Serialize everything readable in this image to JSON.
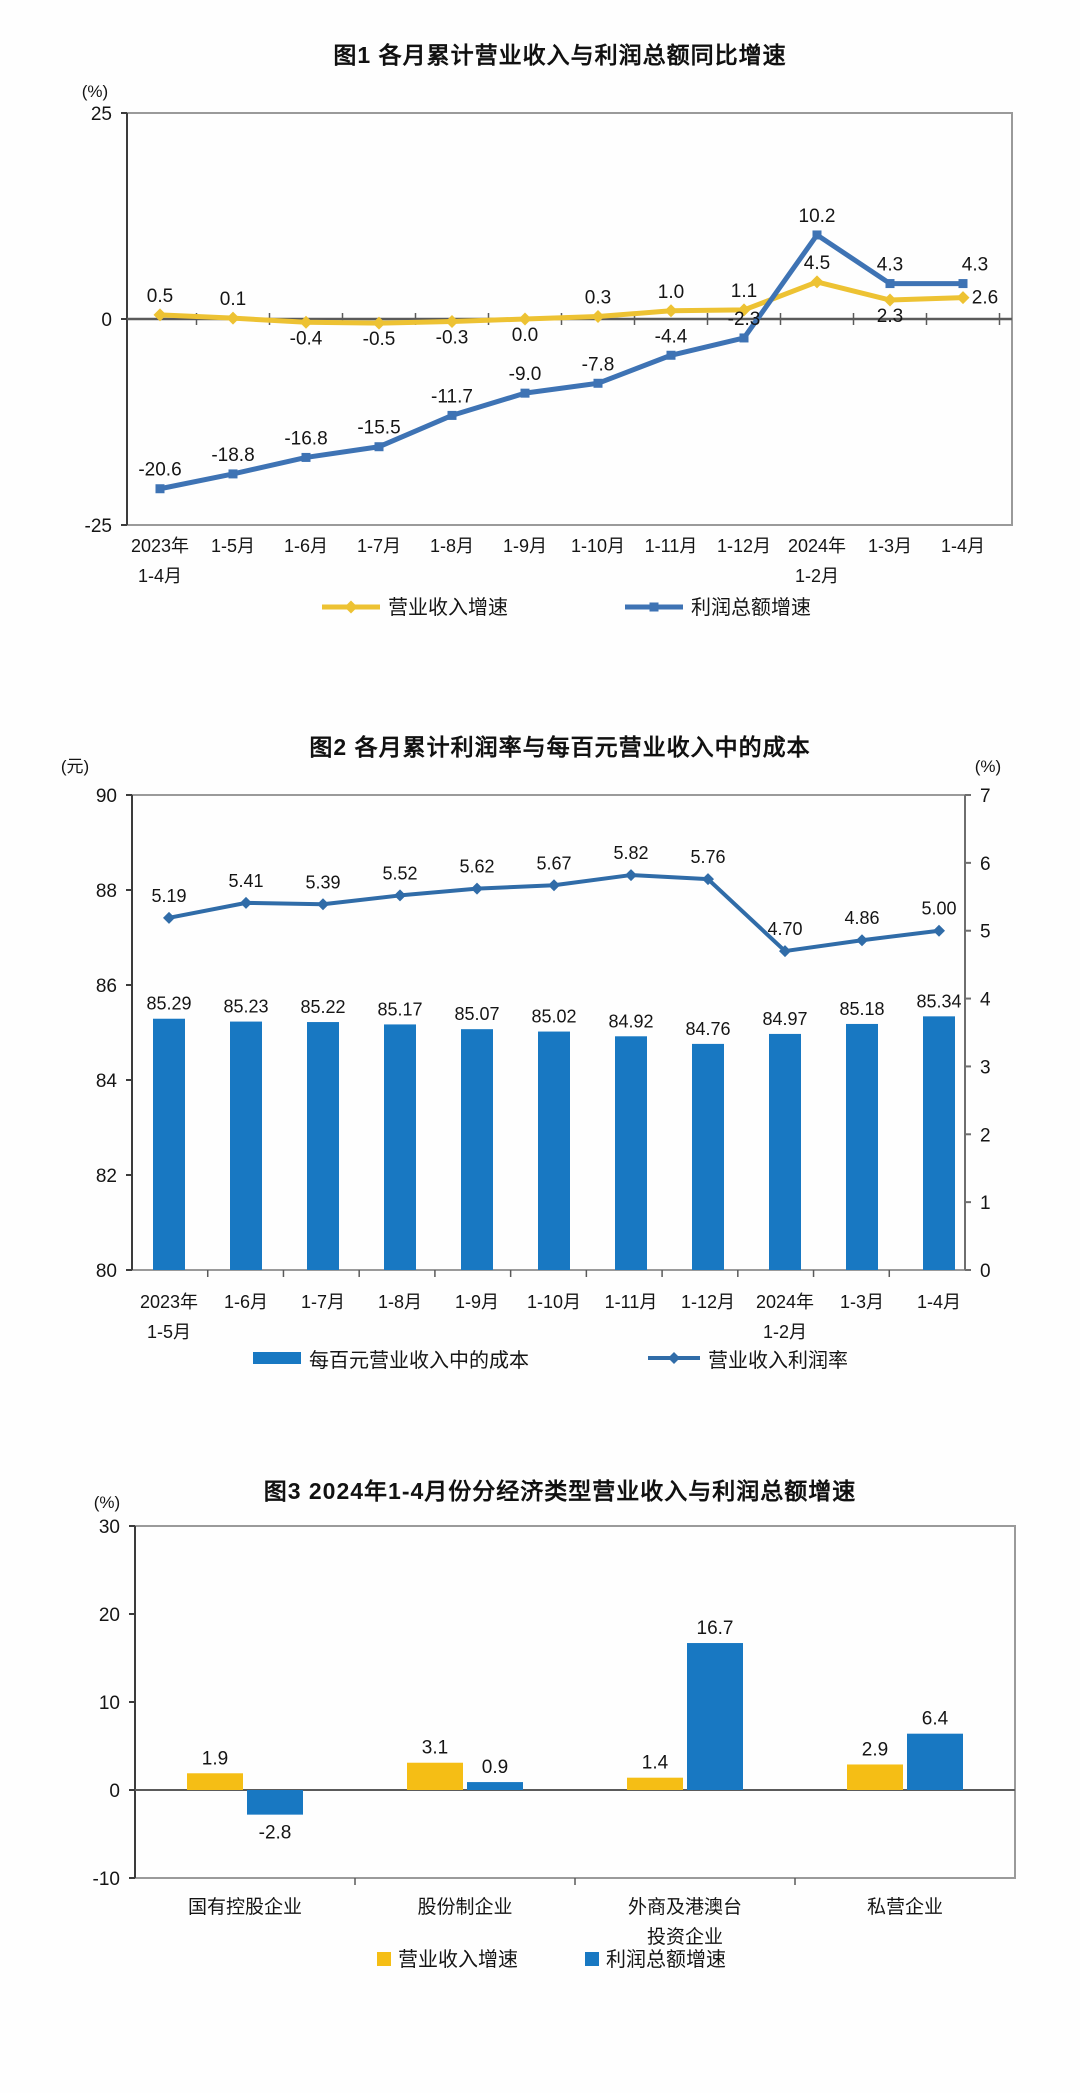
{
  "page": {
    "background": "#fefefe"
  },
  "chart_data": [
    {
      "type": "line",
      "title": "图1  各月累计营业收入与利润总额同比增速",
      "unit_left": "(%)",
      "ylim": [
        -25,
        25
      ],
      "yticks": [
        25,
        0,
        -25
      ],
      "grid": false,
      "legend_position": "bottom",
      "categories": [
        [
          "2023年",
          "1-4月"
        ],
        [
          "1-5月"
        ],
        [
          "1-6月"
        ],
        [
          "1-7月"
        ],
        [
          "1-8月"
        ],
        [
          "1-9月"
        ],
        [
          "1-10月"
        ],
        [
          "1-11月"
        ],
        [
          "1-12月"
        ],
        [
          "2024年",
          "1-2月"
        ],
        [
          "1-3月"
        ],
        [
          "1-4月"
        ]
      ],
      "series": [
        {
          "name": "营业收入增速",
          "color": "#EDC233",
          "marker": "diamond",
          "values": [
            0.5,
            0.1,
            -0.4,
            -0.5,
            -0.3,
            0.0,
            0.3,
            1.0,
            1.1,
            4.5,
            2.3,
            2.6
          ],
          "labels": [
            "0.5",
            "0.1",
            "-0.4",
            "-0.5",
            "-0.3",
            "0.0",
            "0.3",
            "1.0",
            "1.1",
            "4.5",
            "2.3",
            "2.6"
          ],
          "label_pos": [
            "above",
            "above",
            "below",
            "below",
            "below",
            "below",
            "above",
            "above",
            "above",
            "above",
            "below",
            "right"
          ]
        },
        {
          "name": "利润总额增速",
          "color": "#3E73B4",
          "marker": "square",
          "values": [
            -20.6,
            -18.8,
            -16.8,
            -15.5,
            -11.7,
            -9.0,
            -7.8,
            -4.4,
            -2.3,
            10.2,
            4.3,
            4.3
          ],
          "labels": [
            "-20.6",
            "-18.8",
            "-16.8",
            "-15.5",
            "-11.7",
            "-9.0",
            "-7.8",
            "-4.4",
            "-2.3",
            "10.2",
            "4.3",
            "4.3"
          ],
          "label_pos": [
            "above",
            "above",
            "above",
            "above",
            "above",
            "above",
            "above",
            "above",
            "above",
            "above",
            "above",
            "above"
          ]
        }
      ]
    },
    {
      "type": "bar-line",
      "title": "图2  各月累计利润率与每百元营业收入中的成本",
      "unit_left": "(元)",
      "unit_right": "(%)",
      "ylim_left": [
        80,
        90
      ],
      "yticks_left": [
        90,
        88,
        86,
        84,
        82,
        80
      ],
      "ylim_right": [
        0,
        7
      ],
      "yticks_right": [
        7,
        6,
        5,
        4,
        3,
        2,
        1,
        0
      ],
      "grid": false,
      "legend_position": "bottom",
      "categories": [
        [
          "2023年",
          "1-5月"
        ],
        [
          "1-6月"
        ],
        [
          "1-7月"
        ],
        [
          "1-8月"
        ],
        [
          "1-9月"
        ],
        [
          "1-10月"
        ],
        [
          "1-11月"
        ],
        [
          "1-12月"
        ],
        [
          "2024年",
          "1-2月"
        ],
        [
          "1-3月"
        ],
        [
          "1-4月"
        ]
      ],
      "bar_series": {
        "name": "每百元营业收入中的成本",
        "color": "#1878C2",
        "values": [
          85.29,
          85.23,
          85.22,
          85.17,
          85.07,
          85.02,
          84.92,
          84.76,
          84.97,
          85.18,
          85.34
        ],
        "labels": [
          "85.29",
          "85.23",
          "85.22",
          "85.17",
          "85.07",
          "85.02",
          "84.92",
          "84.76",
          "84.97",
          "85.18",
          "85.34"
        ]
      },
      "line_series": {
        "name": "营业收入利润率",
        "color": "#306CA8",
        "marker": "diamond",
        "values": [
          5.19,
          5.41,
          5.39,
          5.52,
          5.62,
          5.67,
          5.82,
          5.76,
          4.7,
          4.86,
          5.0
        ],
        "labels": [
          "5.19",
          "5.41",
          "5.39",
          "5.52",
          "5.62",
          "5.67",
          "5.82",
          "5.76",
          "4.70",
          "4.86",
          "5.00"
        ]
      }
    },
    {
      "type": "grouped-bar",
      "title": "图3  2024年1-4月份分经济类型营业收入与利润总额增速",
      "unit_left": "(%)",
      "ylim": [
        -10,
        30
      ],
      "yticks": [
        30,
        20,
        10,
        0,
        -10
      ],
      "grid": false,
      "legend_position": "bottom",
      "categories": [
        [
          "国有控股企业"
        ],
        [
          "股份制企业"
        ],
        [
          "外商及港澳台",
          "投资企业"
        ],
        [
          "私营企业"
        ]
      ],
      "series": [
        {
          "name": "营业收入增速",
          "color": "#F5BE15",
          "values": [
            1.9,
            3.1,
            1.4,
            2.9
          ],
          "labels": [
            "1.9",
            "3.1",
            "1.4",
            "2.9"
          ]
        },
        {
          "name": "利润总额增速",
          "color": "#1878C2",
          "values": [
            -2.8,
            0.9,
            16.7,
            6.4
          ],
          "labels": [
            "-2.8",
            "0.9",
            "16.7",
            "6.4"
          ]
        }
      ]
    }
  ]
}
